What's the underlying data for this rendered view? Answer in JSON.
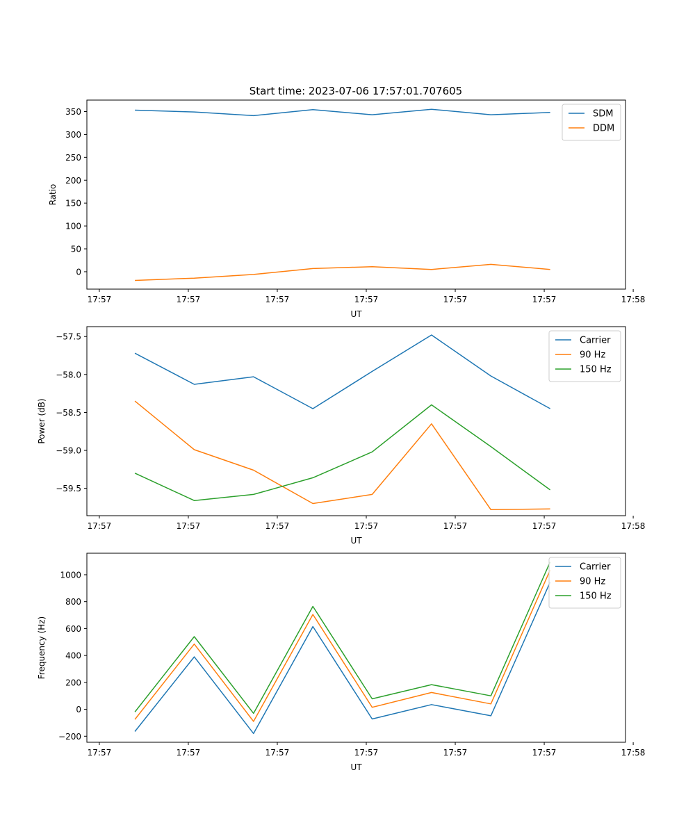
{
  "figure": {
    "title": "Start time: 2023-07-06 17:57:01.707605",
    "colors": {
      "blue": "#1f77b4",
      "orange": "#ff7f0e",
      "green": "#2ca02c"
    }
  },
  "chart_data": [
    {
      "type": "line",
      "name": "ratio",
      "xlabel": "UT",
      "ylabel": "Ratio",
      "x": [
        1,
        2,
        3,
        4,
        5,
        6,
        7,
        8
      ],
      "xlim": [
        0.19,
        9.27
      ],
      "xticks": [
        0.4,
        1.9,
        3.4,
        4.9,
        6.4,
        7.9,
        9.4
      ],
      "xtick_labels": [
        "17:57",
        "17:57",
        "17:57",
        "17:57",
        "17:57",
        "17:57",
        "17:58"
      ],
      "ylim": [
        -38,
        375
      ],
      "yticks": [
        0,
        50,
        100,
        150,
        200,
        250,
        300,
        350
      ],
      "ytick_labels": [
        "0",
        "50",
        "100",
        "150",
        "200",
        "250",
        "300",
        "350"
      ],
      "legend_position": "upper right",
      "series": [
        {
          "name": "SDM",
          "color": "#1f77b4",
          "values": [
            353,
            349,
            341,
            354,
            343,
            355,
            343,
            348
          ]
        },
        {
          "name": "DDM",
          "color": "#ff7f0e",
          "values": [
            -19,
            -14,
            -6,
            7,
            11,
            5,
            16,
            5
          ]
        }
      ]
    },
    {
      "type": "line",
      "name": "power",
      "xlabel": "UT",
      "ylabel": "Power (dB)",
      "x": [
        1,
        2,
        3,
        4,
        5,
        6,
        7,
        8
      ],
      "xlim": [
        0.19,
        9.27
      ],
      "xticks": [
        0.4,
        1.9,
        3.4,
        4.9,
        6.4,
        7.9,
        9.4
      ],
      "xtick_labels": [
        "17:57",
        "17:57",
        "17:57",
        "17:57",
        "17:57",
        "17:57",
        "17:58"
      ],
      "ylim": [
        -59.86,
        -57.37
      ],
      "yticks": [
        -59.5,
        -59.0,
        -58.5,
        -58.0,
        -57.5
      ],
      "ytick_labels": [
        "−59.5",
        "−59.0",
        "−58.5",
        "−58.0",
        "−57.5"
      ],
      "legend_position": "upper right",
      "series": [
        {
          "name": "Carrier",
          "color": "#1f77b4",
          "values": [
            -57.72,
            -58.13,
            -58.03,
            -58.45,
            -57.96,
            -57.48,
            -58.02,
            -58.45
          ]
        },
        {
          "name": "90 Hz",
          "color": "#ff7f0e",
          "values": [
            -58.35,
            -58.99,
            -59.26,
            -59.7,
            -59.58,
            -58.65,
            -59.78,
            -59.77
          ]
        },
        {
          "name": "150 Hz",
          "color": "#2ca02c",
          "values": [
            -59.3,
            -59.66,
            -59.58,
            -59.36,
            -59.02,
            -58.4,
            -58.95,
            -59.52
          ]
        }
      ]
    },
    {
      "type": "line",
      "name": "frequency",
      "xlabel": "UT",
      "ylabel": "Frequency (Hz)",
      "x": [
        1,
        2,
        3,
        4,
        5,
        6,
        7,
        8
      ],
      "xlim": [
        0.19,
        9.27
      ],
      "xticks": [
        0.4,
        1.9,
        3.4,
        4.9,
        6.4,
        7.9,
        9.4
      ],
      "xtick_labels": [
        "17:57",
        "17:57",
        "17:57",
        "17:57",
        "17:57",
        "17:57",
        "17:58"
      ],
      "ylim": [
        -245,
        1160
      ],
      "yticks": [
        -200,
        0,
        200,
        400,
        600,
        800,
        1000
      ],
      "ytick_labels": [
        "−200",
        "0",
        "200",
        "400",
        "600",
        "800",
        "1000"
      ],
      "legend_position": "upper right",
      "series": [
        {
          "name": "Carrier",
          "color": "#1f77b4",
          "values": [
            -165,
            390,
            -180,
            615,
            -72,
            35,
            -48,
            945
          ]
        },
        {
          "name": "90 Hz",
          "color": "#ff7f0e",
          "values": [
            -75,
            485,
            -90,
            705,
            15,
            125,
            40,
            1035
          ]
        },
        {
          "name": "150 Hz",
          "color": "#2ca02c",
          "values": [
            -20,
            540,
            -30,
            765,
            78,
            183,
            100,
            1095
          ]
        }
      ]
    }
  ]
}
